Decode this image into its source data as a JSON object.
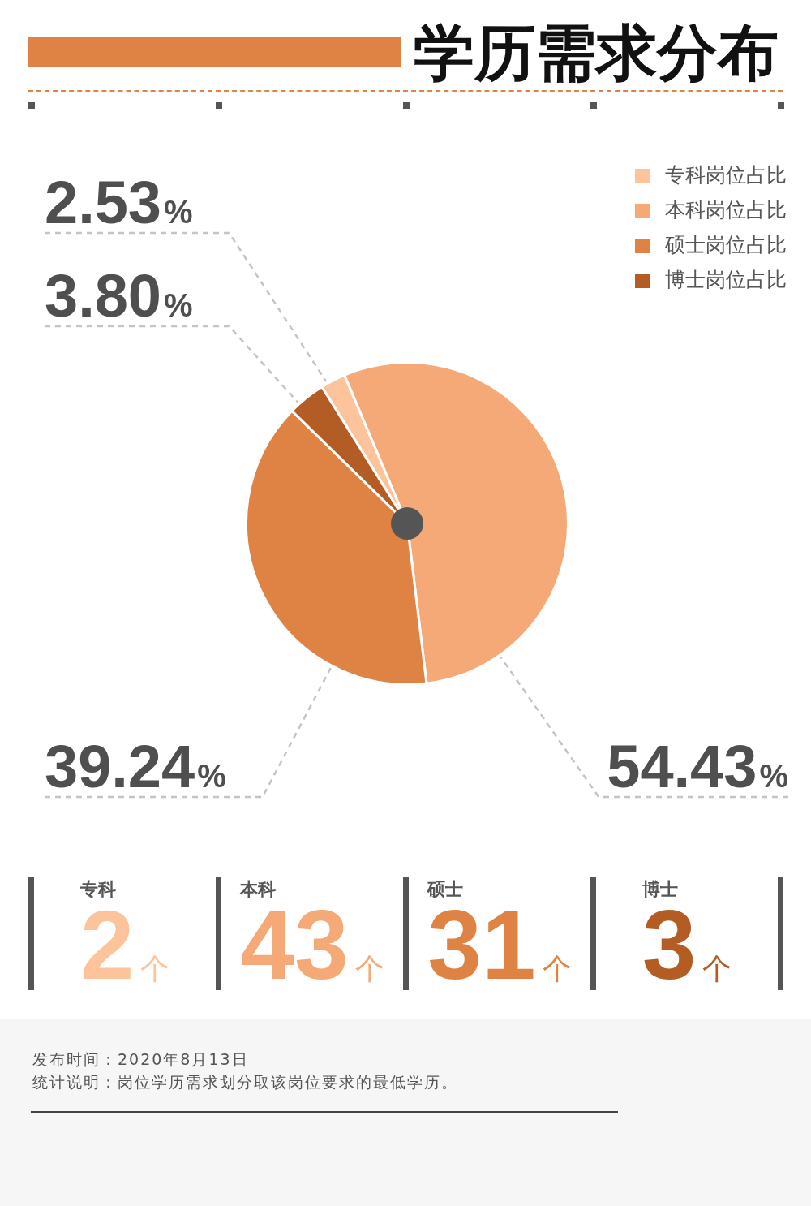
{
  "chart_data": [
    {
      "type": "pie",
      "title": "学历需求分布",
      "categories": [
        "专科岗位占比",
        "本科岗位占比",
        "硕士岗位占比",
        "博士岗位占比"
      ],
      "values": [
        2.53,
        54.43,
        39.24,
        3.8
      ],
      "colors": [
        "#fdc49c",
        "#f4a976",
        "#df8344",
        "#b35d24"
      ],
      "value_labels": [
        "2.53%",
        "54.43%",
        "39.24%",
        "3.80%"
      ],
      "legend": "top right"
    },
    {
      "type": "other",
      "categories": [
        "专科",
        "本科",
        "硕士",
        "博士"
      ],
      "values": [
        2,
        43,
        31,
        3
      ],
      "colors": [
        "#fdc49c",
        "#f4a976",
        "#df8344",
        "#b35d24"
      ],
      "value_labels": [
        "2个",
        "43个",
        "31个",
        "3个"
      ],
      "annotations": [
        "发布时间：2020年8月13日",
        "统计说明：岗位学历需求划分取该岗位要求的最低学历。"
      ]
    }
  ]
}
